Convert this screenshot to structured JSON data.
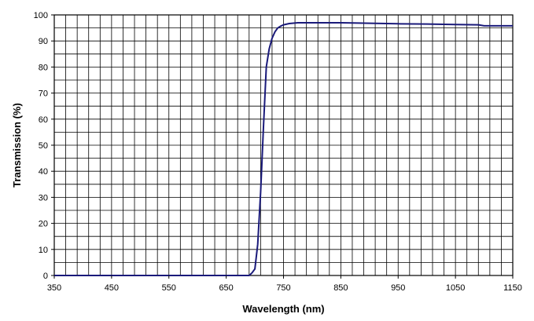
{
  "chart_data": {
    "type": "line",
    "title": "",
    "xlabel": "Wavelength (nm)",
    "ylabel": "Transmission (%)",
    "xlim": [
      350,
      1150
    ],
    "ylim": [
      0,
      100
    ],
    "x_ticks": [
      "350",
      "450",
      "550",
      "650",
      "750",
      "850",
      "950",
      "1050",
      "1150"
    ],
    "y_ticks": [
      "0",
      "10",
      "20",
      "30",
      "40",
      "50",
      "60",
      "70",
      "80",
      "90",
      "100"
    ],
    "grid": true,
    "legend": "none",
    "series": [
      {
        "color": "#1a1a7a",
        "x": [
          350,
          690,
          695,
          700,
          705,
          710,
          715,
          720,
          725,
          730,
          735,
          740,
          745,
          750,
          760,
          775,
          800,
          850,
          900,
          950,
          1000,
          1050,
          1090,
          1100,
          1150
        ],
        "y": [
          0,
          0,
          1,
          2.5,
          12,
          32,
          57,
          80,
          87,
          91,
          93.5,
          95,
          95.7,
          96.2,
          96.7,
          97,
          97,
          97,
          96.8,
          96.6,
          96.5,
          96.3,
          96.2,
          95.8,
          95.8
        ]
      }
    ]
  }
}
